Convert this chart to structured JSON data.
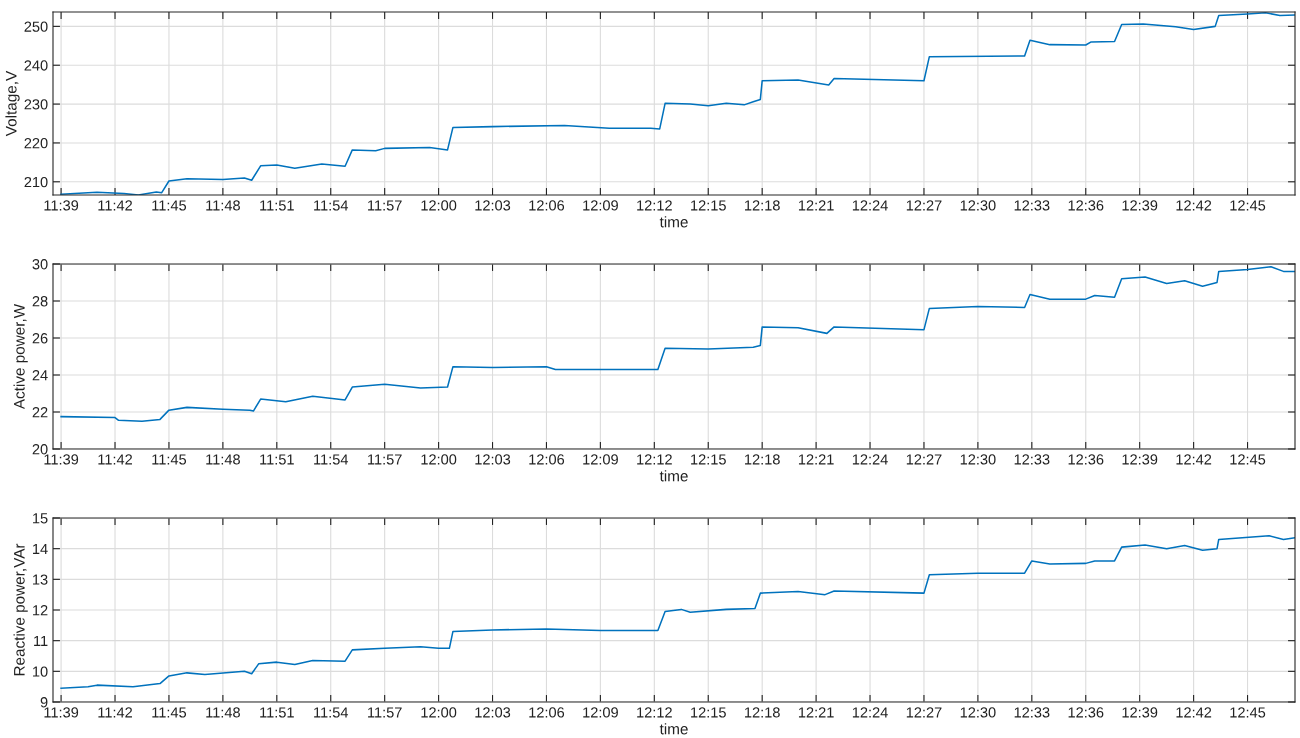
{
  "chart_data": [
    {
      "type": "line",
      "ylabel": "Voltage,V",
      "xlabel": "time",
      "grid": true,
      "xlim": [
        11.6425,
        12.794
      ],
      "ylim": [
        206.6,
        253.7
      ],
      "yticks": [
        210,
        220,
        230,
        240,
        250
      ],
      "xticks": [
        {
          "value": 11.65,
          "label": "11:39"
        },
        {
          "value": 11.7,
          "label": "11:42"
        },
        {
          "value": 11.75,
          "label": "11:45"
        },
        {
          "value": 11.8,
          "label": "11:48"
        },
        {
          "value": 11.85,
          "label": "11:51"
        },
        {
          "value": 11.9,
          "label": "11:54"
        },
        {
          "value": 11.95,
          "label": "11:57"
        },
        {
          "value": 12.0,
          "label": "12:00"
        },
        {
          "value": 12.05,
          "label": "12:03"
        },
        {
          "value": 12.1,
          "label": "12:06"
        },
        {
          "value": 12.15,
          "label": "12:09"
        },
        {
          "value": 12.2,
          "label": "12:12"
        },
        {
          "value": 12.25,
          "label": "12:15"
        },
        {
          "value": 12.3,
          "label": "12:18"
        },
        {
          "value": 12.35,
          "label": "12:21"
        },
        {
          "value": 12.4,
          "label": "12:24"
        },
        {
          "value": 12.45,
          "label": "12:27"
        },
        {
          "value": 12.5,
          "label": "12:30"
        },
        {
          "value": 12.55,
          "label": "12:33"
        },
        {
          "value": 12.6,
          "label": "12:36"
        },
        {
          "value": 12.65,
          "label": "12:39"
        },
        {
          "value": 12.7,
          "label": "12:42"
        },
        {
          "value": 12.75,
          "label": "12:45"
        }
      ],
      "series": [
        {
          "color": "#0072bd",
          "x": [
            11.65,
            11.6833,
            11.7083,
            11.7217,
            11.7383,
            11.7433,
            11.75,
            11.7667,
            11.8,
            11.82,
            11.8267,
            11.835,
            11.85,
            11.8667,
            11.8917,
            11.9133,
            11.92,
            11.9417,
            11.95,
            11.9917,
            12.0083,
            12.0133,
            12.05,
            12.1167,
            12.1583,
            12.1967,
            12.205,
            12.21,
            12.2333,
            12.25,
            12.2667,
            12.2833,
            12.2917,
            12.2983,
            12.3,
            12.3333,
            12.3617,
            12.3667,
            12.45,
            12.455,
            12.5433,
            12.5483,
            12.5667,
            12.6,
            12.605,
            12.6267,
            12.6333,
            12.6533,
            12.6833,
            12.7,
            12.72,
            12.7233,
            12.75,
            12.7667,
            12.78,
            12.7933
          ],
          "values": [
            206.8,
            207.3,
            207.0,
            206.6,
            207.4,
            207.2,
            210.2,
            210.8,
            210.6,
            211.0,
            210.4,
            214.1,
            214.3,
            213.5,
            214.6,
            214.0,
            218.2,
            218.0,
            218.6,
            218.8,
            218.2,
            224.0,
            224.2,
            224.5,
            223.8,
            223.8,
            223.6,
            230.2,
            230.0,
            229.6,
            230.2,
            229.8,
            230.6,
            231.2,
            236.0,
            236.2,
            234.9,
            236.6,
            236.0,
            242.2,
            242.4,
            246.4,
            245.3,
            245.2,
            246.0,
            246.1,
            250.5,
            250.6,
            249.9,
            249.2,
            250.0,
            252.8,
            253.2,
            253.5,
            252.8,
            252.9
          ]
        }
      ]
    },
    {
      "type": "line",
      "ylabel": "Active power,W",
      "xlabel": "time",
      "grid": true,
      "xlim": [
        11.6425,
        12.794
      ],
      "ylim": [
        20,
        30
      ],
      "yticks": [
        20,
        22,
        24,
        26,
        28,
        30
      ],
      "xticks": [
        {
          "value": 11.65,
          "label": "11:39"
        },
        {
          "value": 11.7,
          "label": "11:42"
        },
        {
          "value": 11.75,
          "label": "11:45"
        },
        {
          "value": 11.8,
          "label": "11:48"
        },
        {
          "value": 11.85,
          "label": "11:51"
        },
        {
          "value": 11.9,
          "label": "11:54"
        },
        {
          "value": 11.95,
          "label": "11:57"
        },
        {
          "value": 12.0,
          "label": "12:00"
        },
        {
          "value": 12.05,
          "label": "12:03"
        },
        {
          "value": 12.1,
          "label": "12:06"
        },
        {
          "value": 12.15,
          "label": "12:09"
        },
        {
          "value": 12.2,
          "label": "12:12"
        },
        {
          "value": 12.25,
          "label": "12:15"
        },
        {
          "value": 12.3,
          "label": "12:18"
        },
        {
          "value": 12.35,
          "label": "12:21"
        },
        {
          "value": 12.4,
          "label": "12:24"
        },
        {
          "value": 12.45,
          "label": "12:27"
        },
        {
          "value": 12.5,
          "label": "12:30"
        },
        {
          "value": 12.55,
          "label": "12:33"
        },
        {
          "value": 12.6,
          "label": "12:36"
        },
        {
          "value": 12.65,
          "label": "12:39"
        },
        {
          "value": 12.7,
          "label": "12:42"
        },
        {
          "value": 12.75,
          "label": "12:45"
        }
      ],
      "series": [
        {
          "color": "#0072bd",
          "x": [
            11.65,
            11.7,
            11.7033,
            11.725,
            11.7417,
            11.75,
            11.7667,
            11.8,
            11.825,
            11.8283,
            11.835,
            11.8583,
            11.8833,
            11.9133,
            11.92,
            11.95,
            11.9833,
            12.0083,
            12.0133,
            12.05,
            12.1,
            12.1083,
            12.2033,
            12.21,
            12.25,
            12.2917,
            12.2983,
            12.3,
            12.3333,
            12.36,
            12.3667,
            12.45,
            12.455,
            12.5,
            12.5433,
            12.5483,
            12.5667,
            12.6,
            12.6083,
            12.6267,
            12.6333,
            12.655,
            12.675,
            12.6917,
            12.7083,
            12.7217,
            12.7233,
            12.75,
            12.7717,
            12.7833,
            12.7933
          ],
          "values": [
            21.75,
            21.7,
            21.55,
            21.5,
            21.6,
            22.1,
            22.25,
            22.15,
            22.1,
            22.05,
            22.7,
            22.55,
            22.85,
            22.65,
            23.35,
            23.5,
            23.3,
            23.35,
            24.45,
            24.4,
            24.45,
            24.3,
            24.3,
            25.45,
            25.4,
            25.5,
            25.6,
            26.6,
            26.55,
            26.25,
            26.6,
            26.45,
            27.6,
            27.7,
            27.65,
            28.35,
            28.1,
            28.1,
            28.3,
            28.2,
            29.2,
            29.3,
            28.95,
            29.1,
            28.8,
            29.0,
            29.6,
            29.7,
            29.85,
            29.6,
            29.6
          ]
        }
      ]
    },
    {
      "type": "line",
      "ylabel": "Reactive power,VAr",
      "xlabel": "time",
      "grid": true,
      "xlim": [
        11.6425,
        12.794
      ],
      "ylim": [
        9,
        15
      ],
      "yticks": [
        9,
        10,
        11,
        12,
        13,
        14,
        15
      ],
      "xticks": [
        {
          "value": 11.65,
          "label": "11:39"
        },
        {
          "value": 11.7,
          "label": "11:42"
        },
        {
          "value": 11.75,
          "label": "11:45"
        },
        {
          "value": 11.8,
          "label": "11:48"
        },
        {
          "value": 11.85,
          "label": "11:51"
        },
        {
          "value": 11.9,
          "label": "11:54"
        },
        {
          "value": 11.95,
          "label": "11:57"
        },
        {
          "value": 12.0,
          "label": "12:00"
        },
        {
          "value": 12.05,
          "label": "12:03"
        },
        {
          "value": 12.1,
          "label": "12:06"
        },
        {
          "value": 12.15,
          "label": "12:09"
        },
        {
          "value": 12.2,
          "label": "12:12"
        },
        {
          "value": 12.25,
          "label": "12:15"
        },
        {
          "value": 12.3,
          "label": "12:18"
        },
        {
          "value": 12.35,
          "label": "12:21"
        },
        {
          "value": 12.4,
          "label": "12:24"
        },
        {
          "value": 12.45,
          "label": "12:27"
        },
        {
          "value": 12.5,
          "label": "12:30"
        },
        {
          "value": 12.55,
          "label": "12:33"
        },
        {
          "value": 12.6,
          "label": "12:36"
        },
        {
          "value": 12.65,
          "label": "12:39"
        },
        {
          "value": 12.7,
          "label": "12:42"
        },
        {
          "value": 12.75,
          "label": "12:45"
        }
      ],
      "series": [
        {
          "color": "#0072bd",
          "x": [
            11.65,
            11.675,
            11.6833,
            11.7167,
            11.7417,
            11.75,
            11.7667,
            11.7833,
            11.82,
            11.8267,
            11.8333,
            11.85,
            11.8667,
            11.8833,
            11.9133,
            11.92,
            11.95,
            11.9833,
            12.0,
            12.01,
            12.0133,
            12.05,
            12.1,
            12.15,
            12.2033,
            12.21,
            12.225,
            12.2333,
            12.2667,
            12.2933,
            12.2983,
            12.3333,
            12.3583,
            12.3667,
            12.45,
            12.455,
            12.5,
            12.5433,
            12.55,
            12.5667,
            12.6,
            12.6083,
            12.6267,
            12.6333,
            12.655,
            12.675,
            12.6917,
            12.7083,
            12.7217,
            12.7233,
            12.77,
            12.7833,
            12.7933
          ],
          "values": [
            9.45,
            9.5,
            9.55,
            9.5,
            9.6,
            9.85,
            9.95,
            9.9,
            10.0,
            9.92,
            10.25,
            10.3,
            10.22,
            10.35,
            10.33,
            10.7,
            10.75,
            10.8,
            10.75,
            10.75,
            11.3,
            11.35,
            11.38,
            11.33,
            11.33,
            11.95,
            12.02,
            11.93,
            12.02,
            12.05,
            12.55,
            12.6,
            12.5,
            12.62,
            12.55,
            13.15,
            13.2,
            13.2,
            13.6,
            13.5,
            13.52,
            13.6,
            13.6,
            14.05,
            14.12,
            14.0,
            14.1,
            13.95,
            14.0,
            14.3,
            14.42,
            14.3,
            14.35
          ]
        }
      ]
    }
  ]
}
